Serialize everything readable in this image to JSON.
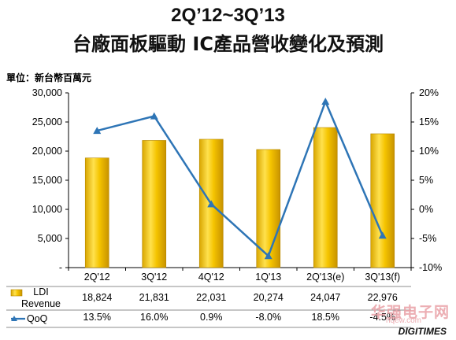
{
  "title_line1": "2Q’12~3Q’13",
  "title_line2": "台廠面板驅動 IC產品營收變化及預測",
  "unit_label": "單位：新台幣百萬元",
  "chart_data": {
    "type": "bar",
    "categories": [
      "2Q'12",
      "3Q'12",
      "4Q'12",
      "1Q'13",
      "2Q'13(e)",
      "3Q'13(f)"
    ],
    "series": [
      {
        "name": "LDI Revenue",
        "type": "bar",
        "axis": "left",
        "color": "#f5c400",
        "values": [
          18824,
          21831,
          22031,
          20274,
          24047,
          22976
        ],
        "labels": [
          "18,824",
          "21,831",
          "22,031",
          "20,274",
          "24,047",
          "22,976"
        ]
      },
      {
        "name": "QoQ",
        "type": "line",
        "axis": "right",
        "color": "#2e75b6",
        "values": [
          13.5,
          16.0,
          0.9,
          -8.0,
          18.5,
          -4.5
        ],
        "labels": [
          "13.5%",
          "16.0%",
          "0.9%",
          "-8.0%",
          "18.5%",
          "-4.5%"
        ]
      }
    ],
    "y_left": {
      "range": [
        0,
        30000
      ],
      "ticks": [
        0,
        5000,
        10000,
        15000,
        20000,
        25000,
        30000
      ],
      "tick_labels": [
        "-",
        "5,000",
        "10,000",
        "15,000",
        "20,000",
        "25,000",
        "30,000"
      ]
    },
    "y_right": {
      "range": [
        -10,
        20
      ],
      "ticks": [
        -10,
        -5,
        0,
        5,
        10,
        15,
        20
      ],
      "tick_labels": [
        "-10%",
        "-5%",
        "0%",
        "5%",
        "10%",
        "15%",
        "20%"
      ]
    },
    "grid": false,
    "legend": "data-table-bottom"
  },
  "watermark": {
    "text": "华强电子网",
    "url": "hqew.com"
  },
  "brand": "DIGITIMES"
}
